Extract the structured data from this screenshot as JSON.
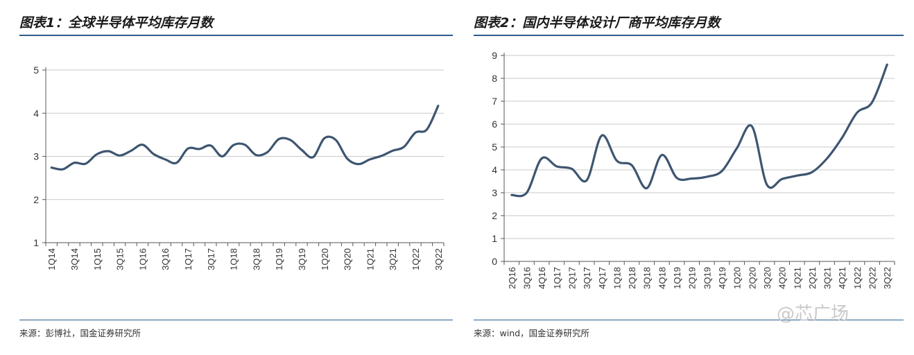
{
  "chart_data": [
    {
      "type": "line",
      "title": "图表1：全球半导体平均库存月数",
      "source": "来源：彭博社，国金证券研究所",
      "ylim": [
        1,
        5
      ],
      "yticks": [
        1,
        2,
        3,
        4,
        5
      ],
      "grid": true,
      "color": "#3d5570",
      "x": [
        "1Q14",
        "2Q14",
        "3Q14",
        "4Q14",
        "1Q15",
        "2Q15",
        "3Q15",
        "4Q15",
        "1Q16",
        "2Q16",
        "3Q16",
        "4Q16",
        "1Q17",
        "2Q17",
        "3Q17",
        "4Q17",
        "1Q18",
        "2Q18",
        "3Q18",
        "4Q18",
        "1Q19",
        "2Q19",
        "3Q19",
        "4Q19",
        "1Q20",
        "2Q20",
        "3Q20",
        "4Q20",
        "1Q21",
        "2Q21",
        "3Q21",
        "4Q21",
        "1Q22",
        "2Q22",
        "3Q22"
      ],
      "xtick_labels": [
        "1Q14",
        "3Q14",
        "1Q15",
        "3Q15",
        "1Q16",
        "3Q16",
        "1Q17",
        "3Q17",
        "1Q18",
        "3Q18",
        "1Q19",
        "3Q19",
        "1Q20",
        "3Q20",
        "1Q21",
        "3Q21",
        "1Q22",
        "3Q22"
      ],
      "series": [
        {
          "values": [
            2.74,
            2.7,
            2.85,
            2.83,
            3.05,
            3.12,
            3.02,
            3.13,
            3.27,
            3.05,
            2.93,
            2.85,
            3.18,
            3.17,
            3.25,
            3.0,
            3.26,
            3.27,
            3.03,
            3.1,
            3.4,
            3.38,
            3.15,
            2.98,
            3.42,
            3.38,
            2.95,
            2.82,
            2.93,
            3.01,
            3.13,
            3.22,
            3.55,
            3.62,
            4.17
          ]
        }
      ]
    },
    {
      "type": "line",
      "title": "图表2：国内半导体设计厂商平均库存月数",
      "source": "来源：wind，国金证券研究所",
      "ylim": [
        0,
        9
      ],
      "yticks": [
        0,
        1,
        2,
        3,
        4,
        5,
        6,
        7,
        8,
        9
      ],
      "grid": true,
      "color": "#3d5570",
      "x": [
        "2Q16",
        "3Q16",
        "4Q16",
        "1Q17",
        "2Q17",
        "3Q17",
        "4Q17",
        "1Q18",
        "2Q18",
        "3Q18",
        "4Q18",
        "1Q19",
        "2Q19",
        "3Q19",
        "4Q19",
        "1Q20",
        "2Q20",
        "3Q20",
        "4Q20",
        "1Q21",
        "2Q21",
        "3Q21",
        "4Q21",
        "1Q22",
        "2Q22",
        "3Q22"
      ],
      "xtick_labels": [
        "2Q16",
        "3Q16",
        "4Q16",
        "1Q17",
        "2Q17",
        "3Q17",
        "4Q17",
        "1Q18",
        "2Q18",
        "3Q18",
        "4Q18",
        "1Q19",
        "2Q19",
        "3Q19",
        "4Q19",
        "1Q20",
        "2Q20",
        "3Q20",
        "4Q20",
        "1Q21",
        "2Q21",
        "3Q21",
        "4Q21",
        "1Q22",
        "2Q22",
        "3Q22"
      ],
      "series": [
        {
          "values": [
            2.9,
            3.0,
            4.5,
            4.15,
            4.05,
            3.55,
            5.5,
            4.4,
            4.2,
            3.2,
            4.65,
            3.65,
            3.62,
            3.7,
            3.95,
            4.95,
            5.9,
            3.35,
            3.6,
            3.75,
            3.9,
            4.5,
            5.4,
            6.5,
            6.95,
            8.6
          ]
        }
      ]
    }
  ],
  "watermark": "@芯广场"
}
